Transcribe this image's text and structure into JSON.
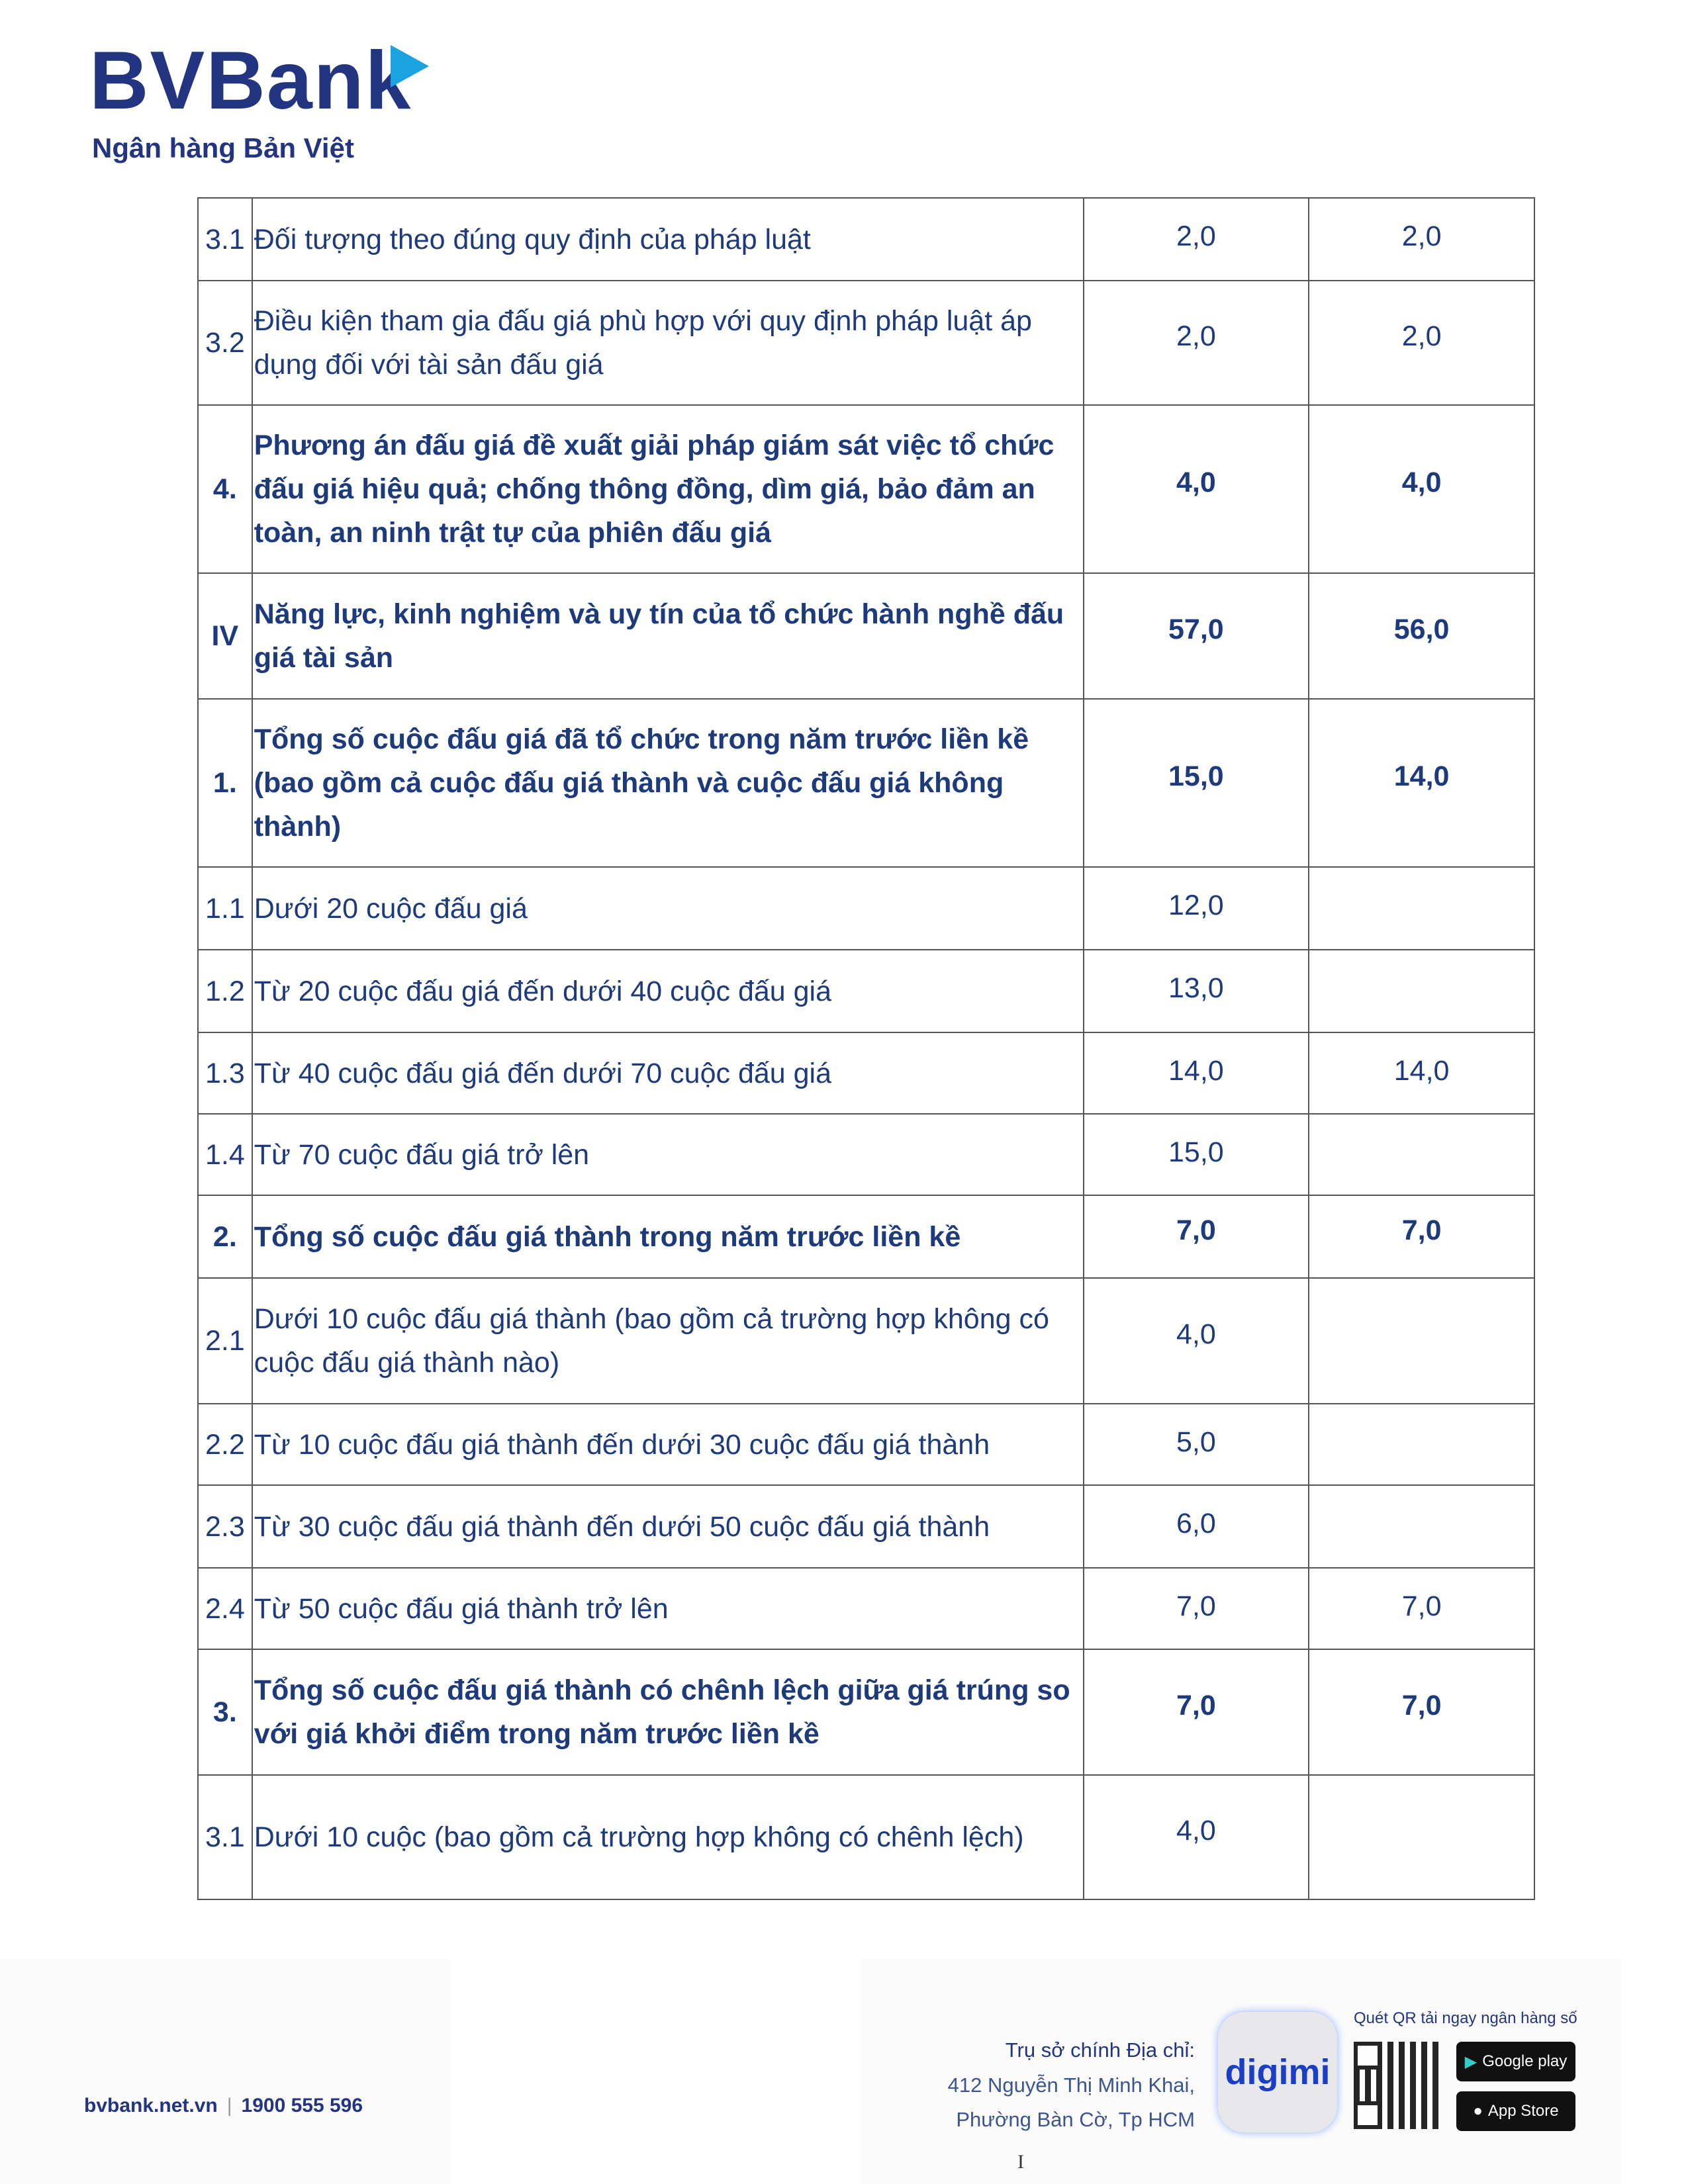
{
  "header": {
    "logo_text": "BVBank",
    "logo_subtitle": "Ngân hàng Bản Việt"
  },
  "table": {
    "rows": [
      {
        "no": "3.1",
        "desc": "Đối tượng theo đúng quy định của pháp luật",
        "v1": "2,0",
        "v2": "2,0",
        "bold": false
      },
      {
        "no": "3.2",
        "desc": "Điều kiện tham gia đấu giá phù hợp với quy định pháp luật áp dụng đối với tài sản đấu giá",
        "v1": "2,0",
        "v2": "2,0",
        "bold": false
      },
      {
        "no": "4.",
        "desc": "Phương án đấu giá đề xuất giải pháp giám sát việc tổ chức đấu giá hiệu quả; chống thông đồng, dìm giá, bảo đảm an toàn, an ninh trật tự của phiên đấu giá",
        "v1": "4,0",
        "v2": "4,0",
        "bold": true
      },
      {
        "no": "IV",
        "desc": "Năng lực, kinh nghiệm và uy tín của tổ chức hành nghề đấu giá tài sản",
        "v1": "57,0",
        "v2": "56,0",
        "bold": true
      },
      {
        "no": "1.",
        "desc": "Tổng số cuộc đấu giá đã tổ chức trong năm trước liền kề (bao gồm cả cuộc đấu giá thành và cuộc đấu giá không thành)",
        "v1": "15,0",
        "v2": "14,0",
        "bold": true
      },
      {
        "no": "1.1",
        "desc": "Dưới 20 cuộc đấu giá",
        "v1": "12,0",
        "v2": "",
        "bold": false
      },
      {
        "no": "1.2",
        "desc": "Từ 20 cuộc đấu giá đến dưới 40 cuộc đấu giá",
        "v1": "13,0",
        "v2": "",
        "bold": false
      },
      {
        "no": "1.3",
        "desc": "Từ 40 cuộc đấu giá đến dưới 70 cuộc đấu giá",
        "v1": "14,0",
        "v2": "14,0",
        "bold": false
      },
      {
        "no": "1.4",
        "desc": "Từ 70 cuộc đấu giá trở lên",
        "v1": "15,0",
        "v2": "",
        "bold": false
      },
      {
        "no": "2.",
        "desc": "Tổng số cuộc đấu giá thành trong năm trước liền kề",
        "v1": "7,0",
        "v2": "7,0",
        "bold": true
      },
      {
        "no": "2.1",
        "desc": "Dưới 10 cuộc đấu giá thành (bao gồm cả trường hợp không có cuộc đấu giá thành nào)",
        "v1": "4,0",
        "v2": "",
        "bold": false
      },
      {
        "no": "2.2",
        "desc": "Từ 10 cuộc đấu giá thành đến dưới 30 cuộc đấu giá thành",
        "v1": "5,0",
        "v2": "",
        "bold": false
      },
      {
        "no": "2.3",
        "desc": "Từ 30 cuộc đấu giá thành đến dưới 50 cuộc đấu giá thành",
        "v1": "6,0",
        "v2": "",
        "bold": false
      },
      {
        "no": "2.4",
        "desc": "Từ 50 cuộc đấu giá thành trở lên",
        "v1": "7,0",
        "v2": "7,0",
        "bold": false
      },
      {
        "no": "3.",
        "desc": "Tổng số cuộc đấu giá thành có chênh lệch giữa giá trúng so với giá khởi điểm trong năm trước liền kề",
        "v1": "7,0",
        "v2": "7,0",
        "bold": true
      },
      {
        "no": "3.1",
        "desc": "Dưới 10 cuộc (bao gồm cả trường hợp không có chênh lệch)",
        "v1": "4,0",
        "v2": "",
        "bold": false
      }
    ]
  },
  "footer": {
    "website": "bvbank.net.vn",
    "separator": "|",
    "hotline": "1900 555 596",
    "address_label": "Trụ sở chính Địa chỉ:",
    "address_line1": "412 Nguyễn Thị Minh Khai,",
    "address_line2": "Phường Bàn Cờ, Tp HCM",
    "app_name": "digimi",
    "qr_caption": "Quét QR tải ngay ngân hàng số",
    "google_play": "Google play",
    "app_store": "App Store",
    "page_mark": "I"
  }
}
